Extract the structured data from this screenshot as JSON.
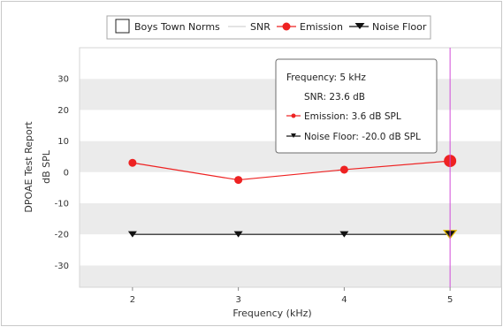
{
  "chart_data": {
    "type": "line",
    "title": "",
    "side_title": "DPOAE Test Report",
    "xlabel": "Frequency (kHz)",
    "ylabel": "dB SPL",
    "xlim": [
      1.5,
      5.5
    ],
    "ylim": [
      -37,
      40
    ],
    "x_ticks": [
      2,
      3,
      4,
      5
    ],
    "y_ticks": [
      30,
      20,
      10,
      0,
      -10,
      -20,
      -30
    ],
    "grid": "alternating horizontal bands",
    "legend": {
      "placement": "top",
      "items": [
        {
          "label": "Boys Town Norms",
          "marker": "checkbox"
        },
        {
          "label": "SNR",
          "marker": "line"
        },
        {
          "label": "Emission",
          "marker": "circle-line"
        },
        {
          "label": "Noise Floor",
          "marker": "triangle-down-line"
        }
      ]
    },
    "x": [
      2,
      3,
      4,
      5
    ],
    "series": [
      {
        "name": "Emission",
        "values": [
          3.0,
          -2.5,
          0.8,
          3.6
        ],
        "color": "#ee2222",
        "marker": "circle"
      },
      {
        "name": "Noise Floor",
        "values": [
          -20,
          -20,
          -20,
          -20
        ],
        "color": "#111111",
        "marker": "triangle-down"
      }
    ],
    "cursor": {
      "x": 5,
      "color": "#d04ad8"
    },
    "tooltip": {
      "frequency": "Frequency: 5 kHz",
      "snr": "SNR: 23.6 dB",
      "emission": "Emission: 3.6 dB SPL",
      "noise_floor": "Noise Floor: -20.0 dB SPL"
    }
  },
  "colors": {
    "band": "#ebebeb",
    "plot_bg": "#ffffff",
    "frame": "#c8c8c8",
    "highlight_ring": "#e0b400"
  }
}
